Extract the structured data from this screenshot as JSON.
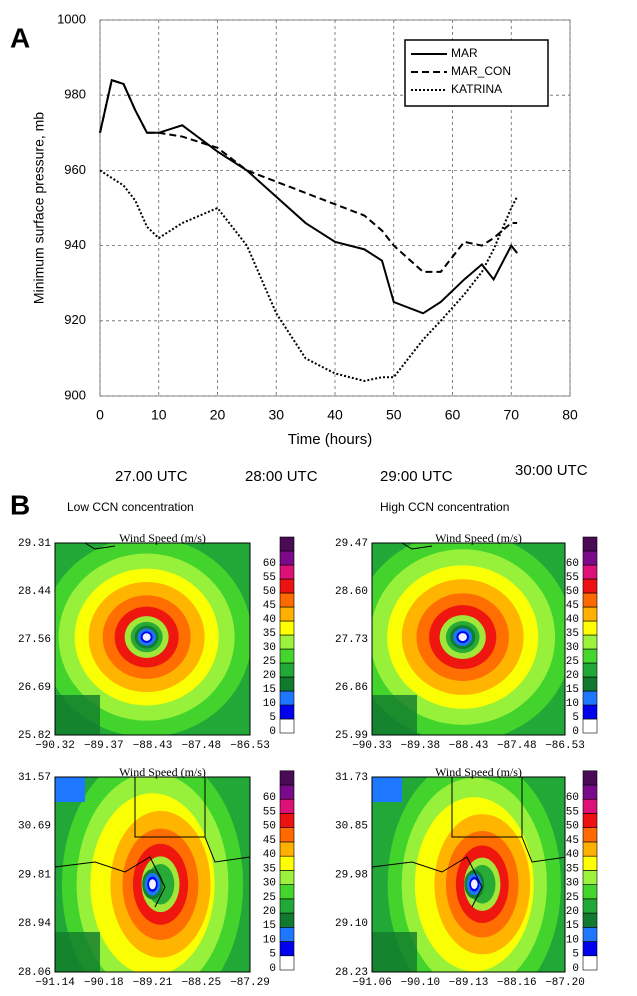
{
  "panel_labels": {
    "a": "A",
    "b": "B"
  },
  "chart_data": {
    "type": "line",
    "y_label": "Minimum surface pressure, mb",
    "x_label": "Time (hours)",
    "x": [
      0,
      2,
      4,
      6,
      8,
      10,
      14,
      20,
      25,
      30,
      35,
      40,
      45,
      48,
      50,
      55,
      58,
      62,
      65,
      67,
      70,
      71
    ],
    "series": [
      {
        "name": "MAR",
        "color": "#000000",
        "dash": "none",
        "values": [
          970,
          984,
          983,
          976,
          970,
          970,
          972,
          965,
          960,
          953,
          946,
          941,
          939,
          936,
          925,
          922,
          925,
          931,
          935,
          931,
          940,
          938
        ]
      },
      {
        "name": "MAR_CON",
        "color": "#000000",
        "dash": "7,4",
        "values": [
          970,
          984,
          983,
          976,
          970,
          970,
          969,
          966,
          960,
          957,
          954,
          951,
          948,
          944,
          940,
          933,
          933,
          941,
          940,
          942,
          946,
          946
        ]
      },
      {
        "name": "KATRINA",
        "color": "#000000",
        "dash": "2,2",
        "values": [
          960,
          958,
          956,
          952,
          945,
          942,
          946,
          950,
          940,
          922,
          910,
          906,
          904,
          905,
          905,
          915,
          920,
          927,
          933,
          939,
          950,
          953
        ]
      }
    ],
    "xlim": [
      0,
      80
    ],
    "xticks": [
      0,
      10,
      20,
      30,
      40,
      50,
      60,
      70,
      80
    ],
    "ylim": [
      900,
      1000
    ],
    "yticks": [
      900,
      920,
      940,
      960,
      980,
      1000
    ],
    "grid": true,
    "legend": "top-right"
  },
  "utc_labels": [
    "27.00 UTC",
    "28:00 UTC",
    "29:00 UTC",
    "30:00 UTC"
  ],
  "column_titles": [
    "Low CCN concentration",
    "High CCN concentration"
  ],
  "colorbar": {
    "ticks": [
      0,
      5,
      10,
      15,
      20,
      25,
      30,
      35,
      40,
      45,
      50,
      55,
      60
    ],
    "colors": [
      "#ffffff",
      "#0000ee",
      "#1e78ff",
      "#117a2e",
      "#22a836",
      "#44d62c",
      "#9cf23c",
      "#ffff00",
      "#ffb000",
      "#ff6a00",
      "#ee1111",
      "#dd1177",
      "#7a0a8a",
      "#4a0a55"
    ]
  },
  "maps": [
    {
      "title": "Wind Speed (m/s)",
      "lat": [
        "29.31",
        "28.44",
        "27.56",
        "26.69",
        "25.82"
      ],
      "lon": [
        "−90.32",
        "−89.37",
        "−88.43",
        "−87.48",
        "−86.53"
      ]
    },
    {
      "title": "Wind Speed (m/s)",
      "lat": [
        "29.47",
        "28.60",
        "27.73",
        "26.86",
        "25.99"
      ],
      "lon": [
        "−90.33",
        "−89.38",
        "−88.43",
        "−87.48",
        "−86.53"
      ]
    },
    {
      "title": "Wind Speed (m/s)",
      "lat": [
        "31.57",
        "30.69",
        "29.81",
        "28.94",
        "28.06"
      ],
      "lon": [
        "−91.14",
        "−90.18",
        "−89.21",
        "−88.25",
        "−87.29"
      ]
    },
    {
      "title": "Wind Speed (m/s)",
      "lat": [
        "31.73",
        "30.85",
        "29.98",
        "29.10",
        "28.23"
      ],
      "lon": [
        "−91.06",
        "−90.10",
        "−89.13",
        "−88.16",
        "−87.20"
      ]
    }
  ]
}
